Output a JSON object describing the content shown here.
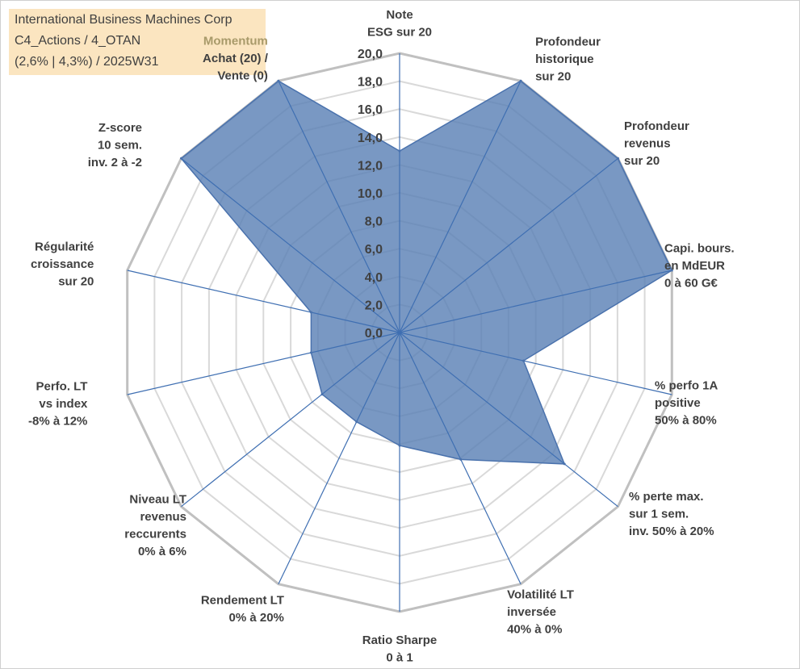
{
  "title_box": {
    "line1": "International Business Machines Corp",
    "line2": "C4_Actions / 4_OTAN",
    "line3": "(2,6% | 4,3%) / 2025W31"
  },
  "chart_data": {
    "type": "radar",
    "rmin": 0,
    "rmax": 20,
    "tick_labels": [
      "0,0",
      "2,0",
      "4,0",
      "6,0",
      "8,0",
      "10,0",
      "12,0",
      "14,0",
      "16,0",
      "18,0",
      "20,0"
    ],
    "grid": true,
    "series_color": "#5b81b6",
    "axes": [
      {
        "lines": [
          "Note",
          "ESG sur 20"
        ],
        "value": 13
      },
      {
        "lines": [
          "Profondeur",
          "historique",
          "sur 20"
        ],
        "value": 20
      },
      {
        "lines": [
          "Profondeur",
          "revenus",
          "sur 20"
        ],
        "value": 20
      },
      {
        "lines": [
          "Capi. bours.",
          "en MdEUR",
          "0 à 60 G€"
        ],
        "value": 20
      },
      {
        "lines": [
          "% perfo 1A",
          "positive",
          "50% à 80%"
        ],
        "value": 9.1
      },
      {
        "lines": [
          "% perte max.",
          "sur 1 sem.",
          "inv. 50% à 20%"
        ],
        "value": 15.1
      },
      {
        "lines": [
          "Volatilité LT",
          "inversée",
          "40% à 0%"
        ],
        "value": 10.1
      },
      {
        "lines": [
          "Ratio Sharpe",
          "0 à 1"
        ],
        "value": 8.1
      },
      {
        "lines": [
          "Rendement LT",
          "0% à 20%"
        ],
        "value": 7.1
      },
      {
        "lines": [
          "Niveau LT",
          "revenus",
          "reccurents",
          "0% à 6%"
        ],
        "value": 7.1
      },
      {
        "lines": [
          "Perfo. LT",
          "vs index",
          "-8% à 12%"
        ],
        "value": 6.5
      },
      {
        "lines": [
          "Régularité",
          "croissance",
          "sur 20"
        ],
        "value": 6.5
      },
      {
        "lines": [
          "Z-score",
          "10 sem.",
          "inv. 2 à -2"
        ],
        "value": 20
      },
      {
        "lines": [
          "Momentum",
          "Achat (20) /",
          "Vente (0)"
        ],
        "highlight_lines": [
          "Momentum",
          "Achat (20)"
        ],
        "value": 20
      }
    ]
  }
}
